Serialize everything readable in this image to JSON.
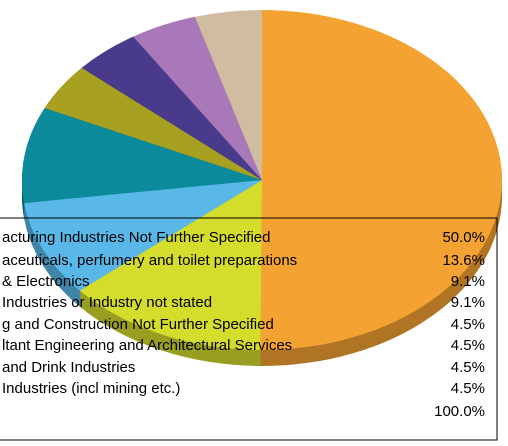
{
  "chart_data": {
    "type": "pie",
    "categories": [
      "acturing Industries Not Further Specified",
      "aceuticals, perfumery and toilet preparations",
      "& Electronics",
      "Industries or Industry not stated",
      "g and Construction Not Further Specified",
      "ltant Engineering and Architectural Services",
      "and Drink Industries",
      "Industries (incl mining etc.)"
    ],
    "values": [
      50.0,
      13.6,
      9.1,
      9.1,
      4.5,
      4.5,
      4.5,
      4.5
    ],
    "value_labels": [
      "50.0%",
      "13.6%",
      "9.1%",
      "9.1%",
      "4.5%",
      "4.5%",
      "4.5%",
      "4.5%"
    ],
    "colors": [
      "#f4a332",
      "#d4dc2c",
      "#5ab8e8",
      "#0a8a9a",
      "#a8a020",
      "#4a3a8c",
      "#a878b8",
      "#d0bca0"
    ],
    "total_label": "100.0%"
  }
}
